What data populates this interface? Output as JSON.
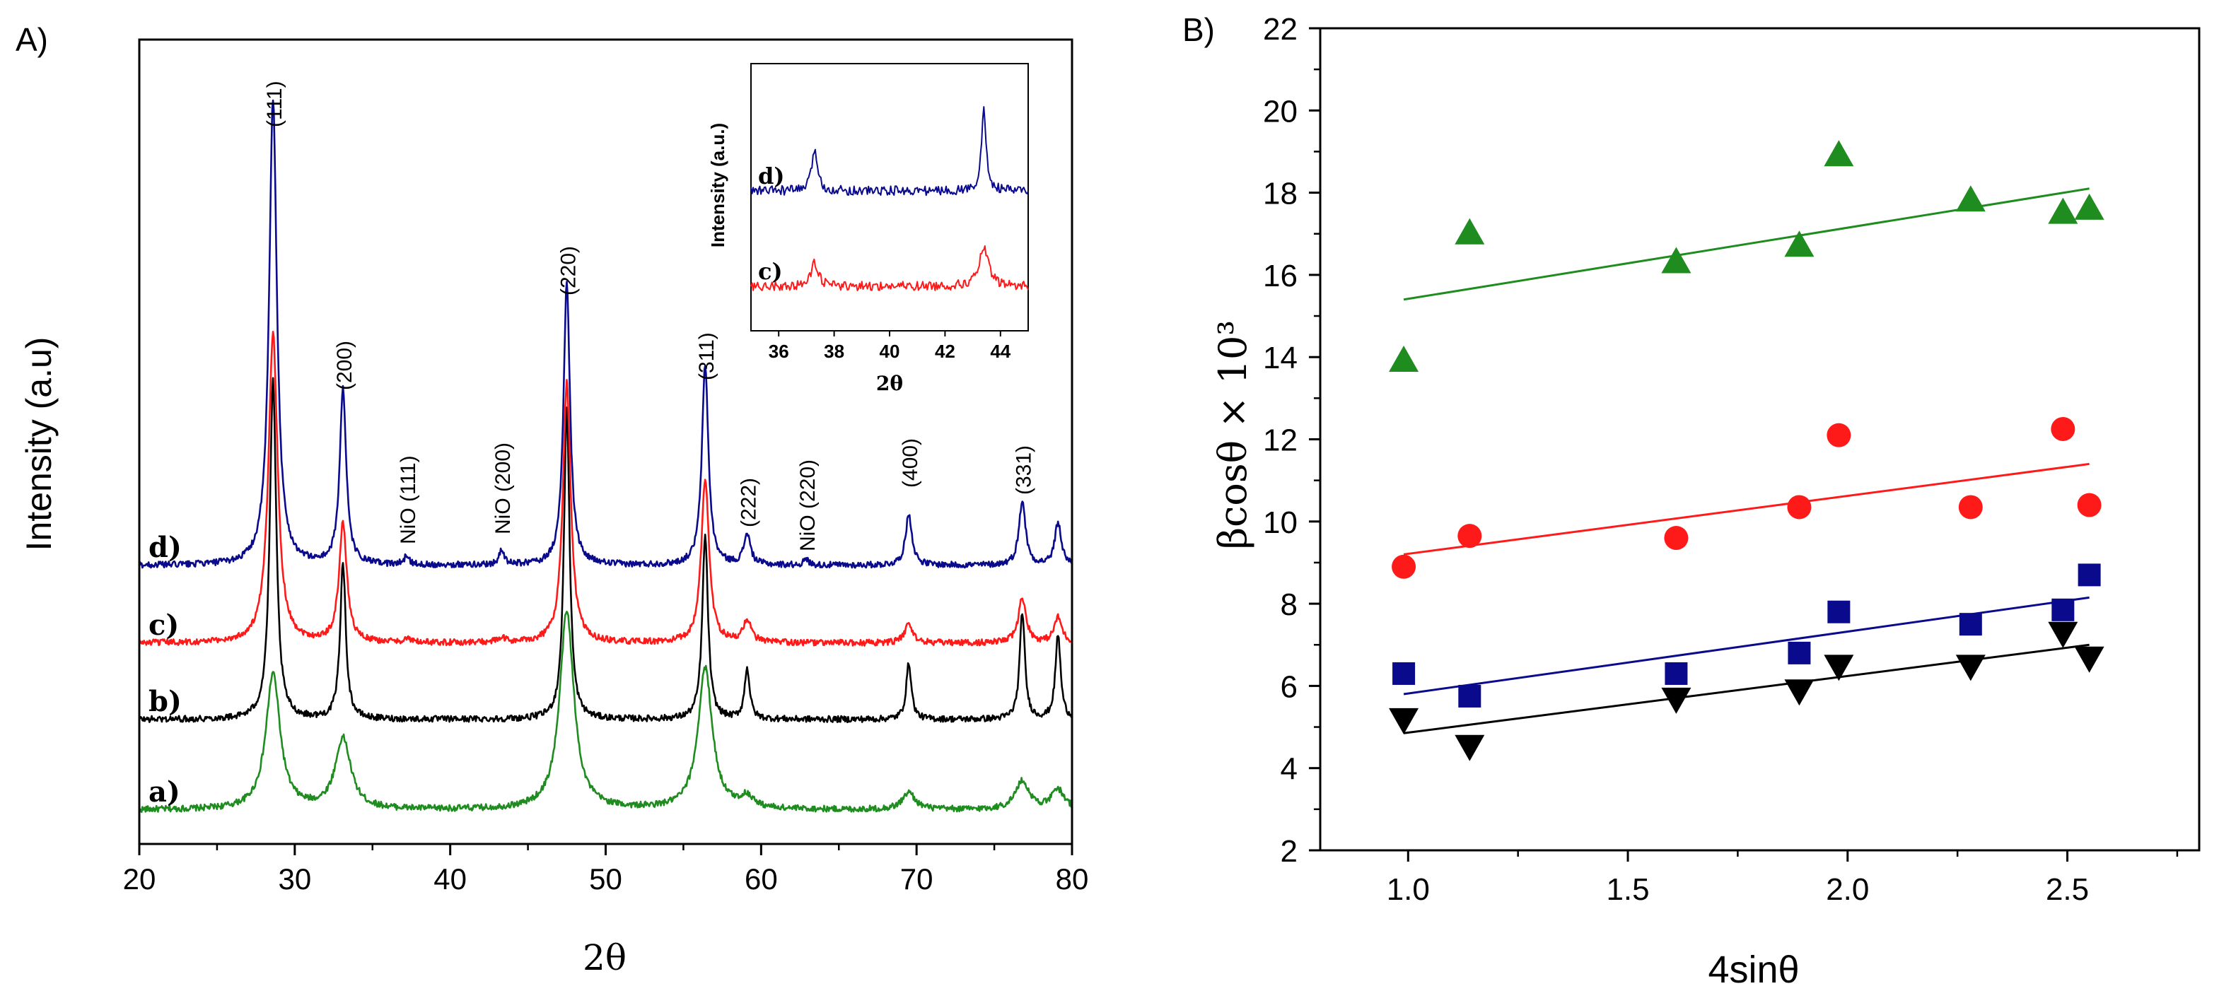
{
  "colors": {
    "a": "#1e8c1e",
    "b": "#000000",
    "c": "#ff1a1a",
    "d": "#0a0a8c",
    "axis": "#000000"
  },
  "chart_data": [
    {
      "panel": "A)",
      "type": "line",
      "title": "",
      "xlabel": "2θ",
      "ylabel": "Intensity (a.u)",
      "xlim": [
        20,
        80
      ],
      "xticks": [
        "20",
        "30",
        "40",
        "50",
        "60",
        "70",
        "80"
      ],
      "grid": false,
      "series": [
        {
          "name": "a)",
          "color": "#1e8c1e",
          "baseline": 0.0,
          "peaks": [
            [
              28.6,
              48,
              0.55
            ],
            [
              33.1,
              25,
              0.6
            ],
            [
              47.5,
              70,
              0.55
            ],
            [
              56.4,
              50,
              0.55
            ],
            [
              59.1,
              4,
              0.5
            ],
            [
              69.5,
              6,
              0.5
            ],
            [
              76.8,
              10,
              0.55
            ],
            [
              79.1,
              7,
              0.5
            ]
          ]
        },
        {
          "name": "b)",
          "color": "#000000",
          "baseline": 1.0,
          "peaks": [
            [
              28.6,
              120,
              0.25
            ],
            [
              33.1,
              55,
              0.22
            ],
            [
              47.5,
              110,
              0.22
            ],
            [
              56.4,
              65,
              0.22
            ],
            [
              59.1,
              18,
              0.2
            ],
            [
              69.5,
              20,
              0.2
            ],
            [
              76.8,
              38,
              0.2
            ],
            [
              79.1,
              30,
              0.2
            ]
          ]
        },
        {
          "name": "c)",
          "color": "#ff1a1a",
          "baseline": 2.0,
          "peaks": [
            [
              28.6,
              110,
              0.35
            ],
            [
              33.1,
              42,
              0.3
            ],
            [
              37.2,
              1.2,
              0.3
            ],
            [
              43.3,
              1.5,
              0.3
            ],
            [
              47.5,
              92,
              0.3
            ],
            [
              56.4,
              58,
              0.3
            ],
            [
              59.1,
              8,
              0.3
            ],
            [
              69.5,
              7,
              0.3
            ],
            [
              76.8,
              16,
              0.3
            ],
            [
              79.1,
              9,
              0.3
            ]
          ]
        },
        {
          "name": "d)",
          "color": "#0a0a8c",
          "baseline": 3.0,
          "peaks": [
            [
              28.6,
              165,
              0.3
            ],
            [
              33.1,
              62,
              0.25
            ],
            [
              37.2,
              3,
              0.2
            ],
            [
              43.3,
              5,
              0.2
            ],
            [
              47.5,
              100,
              0.25
            ],
            [
              56.4,
              71,
              0.25
            ],
            [
              59.1,
              11,
              0.25
            ],
            [
              62.9,
              2,
              0.2
            ],
            [
              69.5,
              18,
              0.25
            ],
            [
              76.8,
              23,
              0.25
            ],
            [
              79.1,
              15,
              0.25
            ]
          ]
        }
      ],
      "annotations": [
        {
          "text": "(111)",
          "x": 28.6
        },
        {
          "text": "(200)",
          "x": 33.1
        },
        {
          "text": "NiO (111)",
          "x": 37.2
        },
        {
          "text": "NiO (200)",
          "x": 43.3
        },
        {
          "text": "(220)",
          "x": 47.5
        },
        {
          "text": "(311)",
          "x": 56.4
        },
        {
          "text": "(222)",
          "x": 59.1
        },
        {
          "text": "NiO (220)",
          "x": 62.9
        },
        {
          "text": "(400)",
          "x": 69.5
        },
        {
          "text": "(331)",
          "x": 76.8
        }
      ],
      "inset": {
        "xlabel": "2θ",
        "ylabel": "Intensity (a.u.)",
        "xlim": [
          35,
          45
        ],
        "xticks": [
          "36",
          "38",
          "40",
          "42",
          "44"
        ],
        "series": [
          {
            "name": "d)",
            "color": "#0a0a8c",
            "peaks": [
              [
                37.3,
                1.0,
                0.12
              ],
              [
                43.4,
                1.9,
                0.1
              ]
            ]
          },
          {
            "name": "c)",
            "color": "#ff1a1a",
            "peaks": [
              [
                37.3,
                0.55,
                0.15
              ],
              [
                43.4,
                0.9,
                0.2
              ]
            ]
          }
        ]
      }
    },
    {
      "panel": "B)",
      "type": "scatter",
      "title": "",
      "xlabel": "4sinθ",
      "ylabel": "βcosθ × 10³",
      "xlim": [
        0.8,
        2.8
      ],
      "ylim": [
        2,
        22
      ],
      "xticks": [
        "1.0",
        "1.5",
        "2.0",
        "2.5"
      ],
      "yticks": [
        "2",
        "4",
        "6",
        "8",
        "10",
        "12",
        "14",
        "16",
        "18",
        "20",
        "22"
      ],
      "grid": false,
      "series": [
        {
          "name": "triangle-up",
          "marker": "triangle-up",
          "color": "#1e8c1e",
          "x": [
            0.99,
            1.14,
            1.61,
            1.89,
            1.98,
            2.28,
            2.49,
            2.55
          ],
          "y": [
            13.9,
            17.0,
            16.3,
            16.7,
            18.9,
            17.8,
            17.5,
            17.6
          ],
          "fit": [
            [
              0.99,
              15.4
            ],
            [
              2.55,
              18.1
            ]
          ]
        },
        {
          "name": "circle",
          "marker": "circle",
          "color": "#ff1a1a",
          "x": [
            0.99,
            1.14,
            1.61,
            1.89,
            1.98,
            2.28,
            2.49,
            2.55
          ],
          "y": [
            8.9,
            9.65,
            9.6,
            10.35,
            12.1,
            10.35,
            12.25,
            10.4
          ],
          "fit": [
            [
              0.99,
              9.2
            ],
            [
              2.55,
              11.4
            ]
          ]
        },
        {
          "name": "square",
          "marker": "square",
          "color": "#0a0a8c",
          "x": [
            0.99,
            1.14,
            1.61,
            1.89,
            1.98,
            2.28,
            2.49,
            2.55
          ],
          "y": [
            6.3,
            5.75,
            6.3,
            6.8,
            7.8,
            7.5,
            7.85,
            8.7
          ],
          "fit": [
            [
              0.99,
              5.8
            ],
            [
              2.55,
              8.15
            ]
          ]
        },
        {
          "name": "triangle-down",
          "marker": "triangle-down",
          "color": "#000000",
          "x": [
            0.99,
            1.14,
            1.61,
            1.89,
            1.98,
            2.28,
            2.49,
            2.55
          ],
          "y": [
            5.2,
            4.55,
            5.7,
            5.9,
            6.5,
            6.5,
            7.3,
            6.7
          ],
          "fit": [
            [
              0.99,
              4.85
            ],
            [
              2.55,
              7.0
            ]
          ]
        }
      ]
    }
  ]
}
